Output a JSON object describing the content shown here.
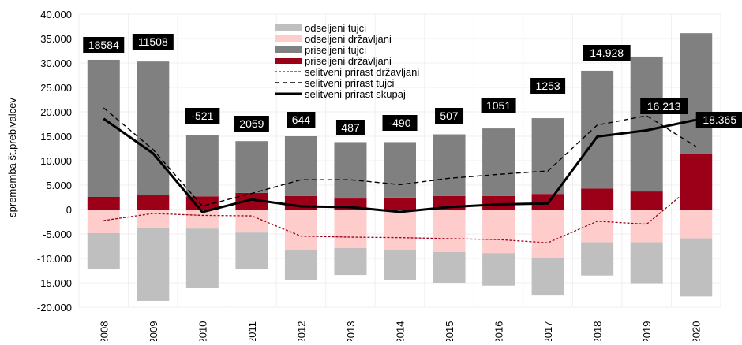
{
  "chart_data": {
    "type": "bar",
    "stacked": true,
    "ylabel": "sprememba št.prebivalcev",
    "xlabel": "",
    "ylim": [
      -20000,
      40000
    ],
    "yticks": [
      40000,
      35000,
      30000,
      25000,
      20000,
      15000,
      10000,
      5000,
      0,
      -5000,
      -10000,
      -15000,
      -20000
    ],
    "ytick_labels": [
      "40.000",
      "35.000",
      "30.000",
      "25.000",
      "20.000",
      "15.000",
      "10.000",
      "5.000",
      "0",
      "-5.000",
      "-10.000",
      "-15.000",
      "-20.000"
    ],
    "grid": true,
    "legend_position": "top-center",
    "categories": [
      "2008",
      "2009",
      "2010",
      "2011",
      "2012",
      "2013",
      "2014",
      "2015",
      "2016",
      "2017",
      "2018",
      "2019",
      "2020"
    ],
    "bar_series": [
      {
        "name": "odseljeni tujci",
        "color": "#bfbfbf",
        "values": [
          -7260,
          -15000,
          -12100,
          -7400,
          -6300,
          -5500,
          -6200,
          -6300,
          -6700,
          -7600,
          -6800,
          -8400,
          -11900
        ]
      },
      {
        "name": "odseljeni državljani",
        "color": "#ffcccc",
        "values": [
          -4840,
          -3700,
          -3900,
          -4700,
          -8200,
          -7900,
          -8200,
          -8700,
          -8900,
          -10000,
          -6700,
          -6700,
          -5900
        ]
      },
      {
        "name": "priseljeni tujci",
        "color": "#808080",
        "values": [
          28070,
          27400,
          12600,
          10600,
          12250,
          11550,
          11350,
          12650,
          13850,
          15500,
          24100,
          27600,
          24800
        ]
      },
      {
        "name": "priseljeni državljani",
        "color": "#9c0019",
        "values": [
          2580,
          2900,
          2700,
          3400,
          2750,
          2250,
          2450,
          2750,
          2750,
          3200,
          4300,
          3700,
          11300
        ]
      }
    ],
    "line_series": [
      {
        "name": "selitveni prirast državljani",
        "color": "#9c0019",
        "style": "dotted",
        "values": [
          -2260,
          -800,
          -1200,
          -1300,
          -5450,
          -5650,
          -5750,
          -5950,
          -6150,
          -6800,
          -2400,
          -3000,
          5400
        ]
      },
      {
        "name": "selitveni prirast tujci",
        "color": "#000000",
        "style": "dashed",
        "values": [
          20810,
          12300,
          700,
          3300,
          6100,
          6100,
          5100,
          6400,
          7200,
          7900,
          17300,
          19200,
          12900
        ]
      },
      {
        "name": "selitveni prirast skupaj",
        "color": "#000000",
        "style": "solid",
        "values": [
          18584,
          11508,
          -521,
          2059,
          644,
          487,
          -490,
          507,
          1051,
          1253,
          14928,
          16213,
          18365
        ]
      }
    ],
    "data_labels": [
      "18584",
      "11508",
      "-521",
      "2059",
      "644",
      "487",
      "-490",
      "507",
      "1051",
      "1253",
      "14.928",
      "16.213",
      "18.365"
    ]
  }
}
